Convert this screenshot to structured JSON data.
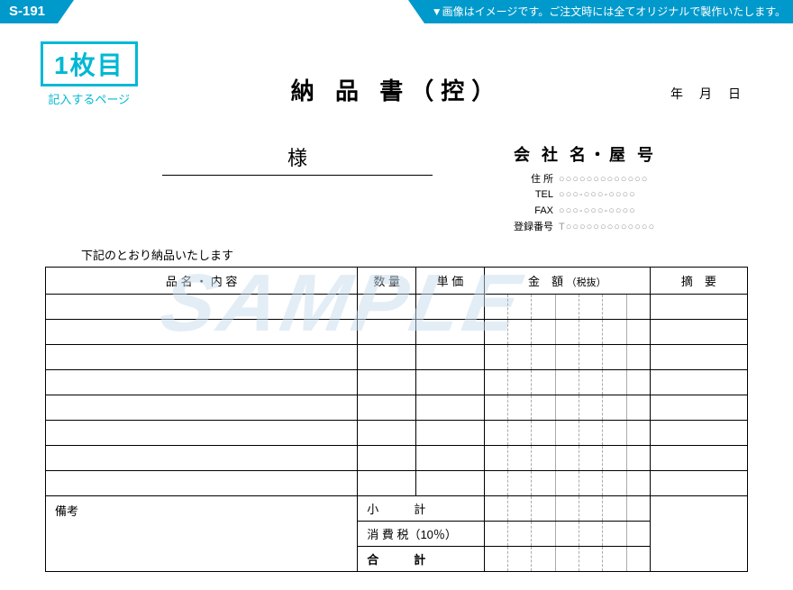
{
  "header": {
    "code": "S-191",
    "note": "▼画像はイメージです。ご注文時には全てオリジナルで製作いたします。"
  },
  "pageBadge": {
    "main": "1枚目",
    "sub": "記入するページ"
  },
  "title": "納 品 書（控）",
  "dateLabels": "年月日",
  "recipientSuffix": "様",
  "company": {
    "name": "会 社 名・屋 号",
    "addrLabel": "住 所",
    "addrVal": "○○○○○○○○○○○○○",
    "telLabel": "TEL",
    "telVal": "○○○-○○○-○○○○",
    "faxLabel": "FAX",
    "faxVal": "○○○-○○○-○○○○",
    "regLabel": "登録番号",
    "regVal": "T○○○○○○○○○○○○○"
  },
  "deliveryNote": "下記のとおり納品いたします",
  "columns": {
    "name": "品 名 ・ 内 容",
    "qty": "数 量",
    "price": "単 価",
    "amount": "金　額",
    "amountSub": "（税抜）",
    "note": "摘　要"
  },
  "bodyRows": 8,
  "footer": {
    "remarks": "備考",
    "subtotal": "小　　　計",
    "tax": "消 費 税（10％）",
    "total": "合　　　計"
  },
  "watermark": "SAMPLE",
  "colors": {
    "accent": "#0099cc",
    "badge": "#00b8d4"
  }
}
